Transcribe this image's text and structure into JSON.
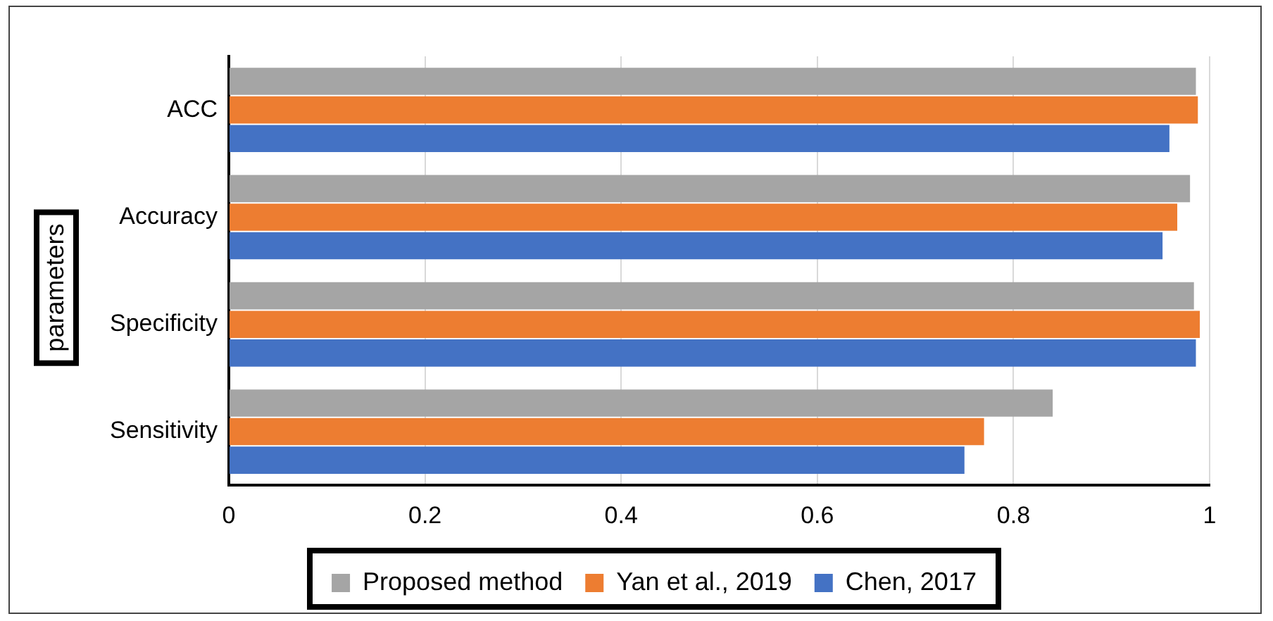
{
  "chart_data": {
    "type": "bar",
    "orientation": "horizontal",
    "ylabel": "parameters",
    "categories": [
      "ACC",
      "Accuracy",
      "Specificity",
      "Sensitivity"
    ],
    "series": [
      {
        "name": "Proposed method",
        "color": "#a5a5a5",
        "values": [
          0.986,
          0.98,
          0.984,
          0.84
        ]
      },
      {
        "name": "Yan et al., 2019",
        "color": "#ed7d31",
        "values": [
          0.988,
          0.967,
          0.99,
          0.77
        ]
      },
      {
        "name": "Chen, 2017",
        "color": "#4472c4",
        "values": [
          0.959,
          0.952,
          0.986,
          0.75
        ]
      }
    ],
    "xlim": [
      0,
      1
    ],
    "xticks": [
      0,
      0.2,
      0.4,
      0.6,
      0.8,
      1
    ],
    "grid": "x",
    "legend": "bottom"
  }
}
